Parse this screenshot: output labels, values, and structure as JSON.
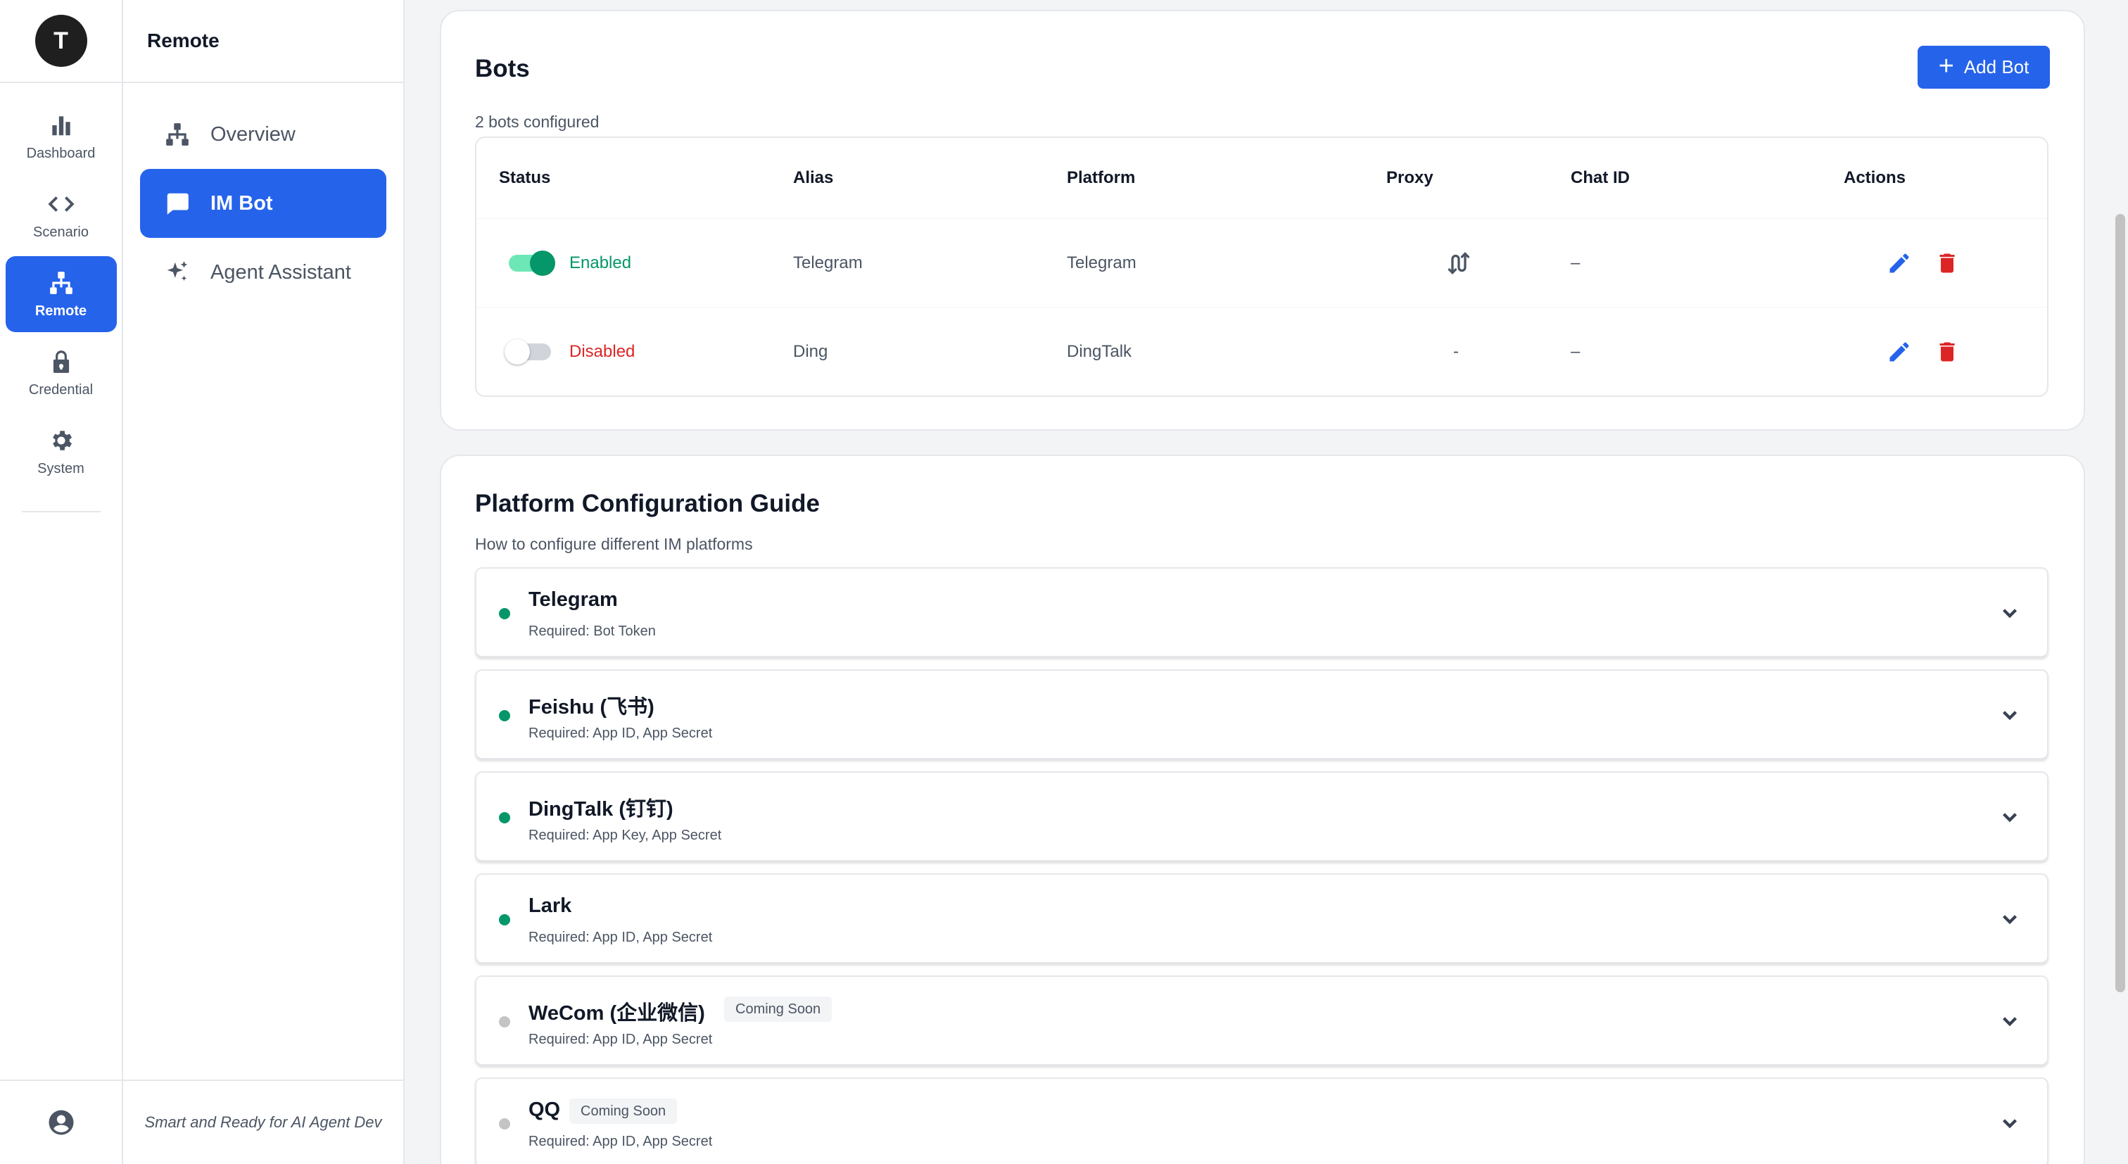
{
  "rail": {
    "avatar_letter": "T",
    "items": [
      {
        "label": "Dashboard",
        "icon": "bar-chart-icon"
      },
      {
        "label": "Scenario",
        "icon": "code-icon"
      },
      {
        "label": "Remote",
        "icon": "sitemap-icon"
      },
      {
        "label": "Credential",
        "icon": "lock-icon"
      },
      {
        "label": "System",
        "icon": "gear-icon"
      }
    ],
    "active": "Remote",
    "bottom_icon": "user-circle-icon"
  },
  "subnav": {
    "title": "Remote",
    "items": [
      {
        "label": "Overview",
        "icon": "sitemap-icon"
      },
      {
        "label": "IM Bot",
        "icon": "chat-bubble-icon"
      },
      {
        "label": "Agent Assistant",
        "icon": "sparkles-icon"
      }
    ],
    "active": "IM Bot",
    "footer": "Smart and Ready for AI Agent Dev"
  },
  "bots": {
    "title": "Bots",
    "subtitle": "2 bots configured",
    "add_button": "Add Bot",
    "columns": [
      "Status",
      "Alias",
      "Platform",
      "Proxy",
      "Chat ID",
      "Actions"
    ],
    "rows": [
      {
        "enabled": true,
        "status": "Enabled",
        "alias": "Telegram",
        "platform": "Telegram",
        "proxy": "route-icon",
        "chat_id": "–"
      },
      {
        "enabled": false,
        "status": "Disabled",
        "alias": "Ding",
        "platform": "DingTalk",
        "proxy": "-",
        "chat_id": "–"
      }
    ]
  },
  "guide": {
    "title": "Platform Configuration Guide",
    "subtitle": "How to configure different IM platforms",
    "items": [
      {
        "name": "Telegram",
        "required": "Required: Bot Token",
        "available": true,
        "badge": ""
      },
      {
        "name": "Feishu (飞书)",
        "required": "Required: App ID, App Secret",
        "available": true,
        "badge": ""
      },
      {
        "name": "DingTalk (钉钉)",
        "required": "Required: App Key, App Secret",
        "available": true,
        "badge": ""
      },
      {
        "name": "Lark",
        "required": "Required: App ID, App Secret",
        "available": true,
        "badge": ""
      },
      {
        "name": "WeCom (企业微信)",
        "required": "Required: App ID, App Secret",
        "available": false,
        "badge": "Coming Soon"
      },
      {
        "name": "QQ",
        "required": "Required: App ID, App Secret",
        "available": false,
        "badge": "Coming Soon"
      }
    ]
  },
  "colors": {
    "accent": "#2563eb",
    "enabled": "#059669",
    "disabled": "#dc2626",
    "delete": "#dc2626"
  }
}
